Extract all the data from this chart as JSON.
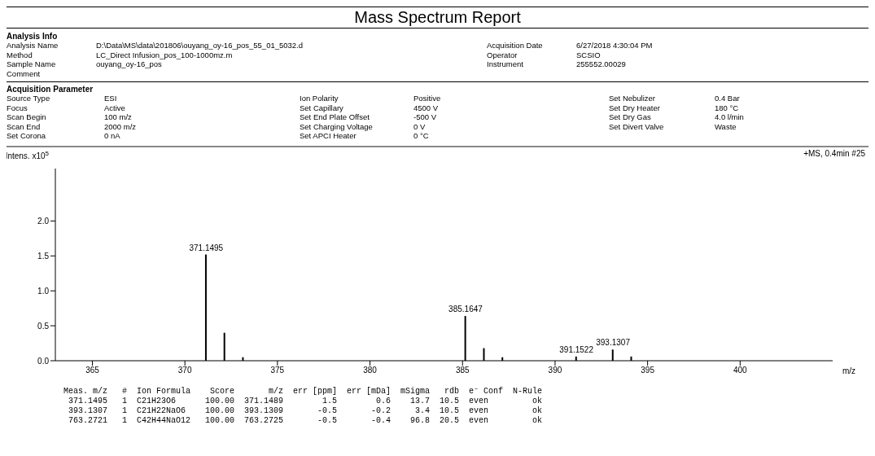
{
  "chart_data": {
    "type": "bar",
    "title": "Mass Spectrum Report",
    "subtitle": "+MS, 0.4min #25",
    "xlabel": "m/z",
    "ylabel": "Intens. x10$^{5}$",
    "x": [
      371.1495,
      372.15,
      373.15,
      385.1647,
      386.17,
      387.17,
      391.1522,
      393.1307,
      394.13
    ],
    "values": [
      1.52,
      0.4,
      0.05,
      0.64,
      0.18,
      0.05,
      0.06,
      0.16,
      0.06
    ],
    "color": "#000000",
    "xlim": [
      363,
      405
    ],
    "xticks": [
      365,
      370,
      375,
      380,
      385,
      390,
      395,
      400
    ],
    "ylim": [
      0,
      2.75
    ],
    "yticks": [
      {
        "value": 0,
        "label": "0.0"
      },
      {
        "value": 0.5,
        "label": "0.5"
      },
      {
        "value": 1,
        "label": "1.0"
      },
      {
        "value": 1.5,
        "label": "1.5"
      },
      {
        "value": 2,
        "label": "2.0"
      }
    ],
    "annotations": [
      "Analysis Info",
      "Analysis Name\tD:\\Data\\MS\\data\\201806\\ouyang_oy-16_pos_55_01_5032.d",
      "Acquisition Date\t6/27/2018 4:30:04 PM",
      "Method\tLC_Direct Infusion_pos_100-1000mz.m",
      "Operator\tSCSIO",
      "Sample Name\touyang_oy-16_pos",
      "Instrument\t255552.00029",
      "Comment\t",
      "Acquisition Parameter",
      "Source Type\tESI",
      "Ion Polarity\tPositive",
      "Set Nebulizer\t0.4 Bar",
      "Focus\tActive",
      "Set Capillary\t4500 V",
      "Set Dry Heater\t180 °C",
      "Scan Begin\t100 m/z",
      "Set End Plate Offset\t-500 V",
      "Set Dry Gas\t4.0 l/min",
      "Scan End\t2000 m/z",
      "Set Charging Voltage\t0 V",
      "Set Divert Valve\tWaste",
      "Set Corona\t0 nA",
      "Set APCI Heater\t0 °C",
      "Meas. m/z   #  Ion Formula    Score       m/z  err [ppm]  err [mDa]  mSigma   rdb  e⁻ Conf  N-Rule",
      " 371.1495   1  C21H23O6      100.00  371.1489        1.5        0.6    13.7  10.5  even         ok",
      " 393.1307   1  C21H22NaO6    100.00  393.1309       -0.5       -0.2     3.4  10.5  even         ok",
      " 763.2721   1  C42H44NaO12   100.00  763.2725       -0.5       -0.4    96.8  20.5  even         ok",
      {
        "text": "371.1495",
        "x": 371.1495,
        "y": 1.52
      },
      {
        "text": "385.1647",
        "x": 385.1647,
        "y": 0.64
      },
      {
        "text": "391.1522",
        "x": 391.1522,
        "y": 0.06
      },
      {
        "text": "393.1307",
        "x": 393.1307,
        "y": 0.16
      }
    ]
  }
}
